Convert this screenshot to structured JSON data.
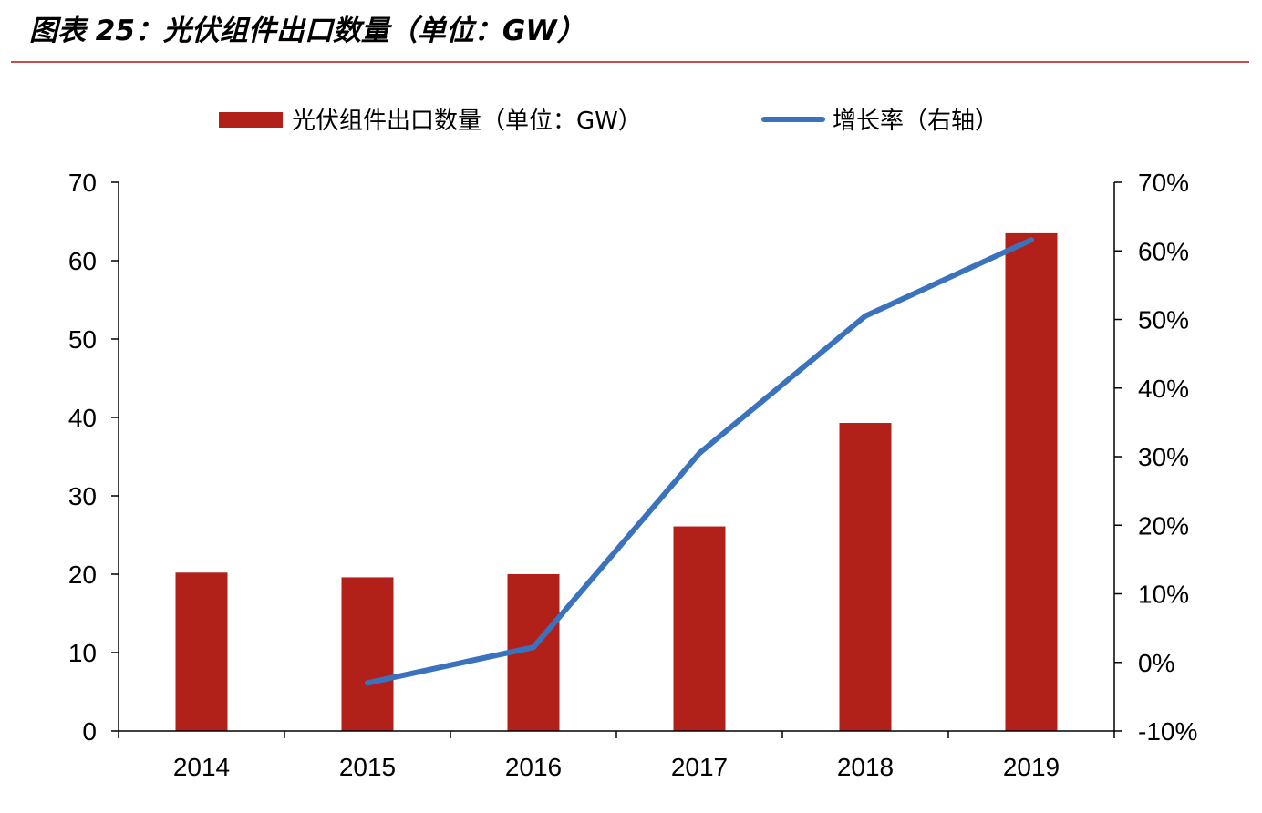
{
  "figure": {
    "title": "图表 25：光伏组件出口数量（单位：GW）",
    "rule_color": "#c0504d"
  },
  "chart_data": {
    "type": "bar",
    "categories": [
      "2014",
      "2015",
      "2016",
      "2017",
      "2018",
      "2019"
    ],
    "series": [
      {
        "name": "光伏组件出口数量（单位：GW）",
        "type": "bar",
        "axis": "left",
        "color": "#b22119",
        "values": [
          20.2,
          19.6,
          20.0,
          26.1,
          39.3,
          63.5
        ]
      },
      {
        "name": "增长率（右轴）",
        "type": "line",
        "axis": "right",
        "color": "#3a72bd",
        "values": [
          null,
          -3.0,
          2.2,
          30.5,
          50.5,
          61.6
        ]
      }
    ],
    "y_left": {
      "ylim": [
        0,
        70
      ],
      "ticks": [
        0,
        10,
        20,
        30,
        40,
        50,
        60,
        70
      ],
      "tick_labels": [
        "0",
        "10",
        "20",
        "30",
        "40",
        "50",
        "60",
        "70"
      ]
    },
    "y_right": {
      "ylim": [
        -10,
        70
      ],
      "ticks": [
        -10,
        0,
        10,
        20,
        30,
        40,
        50,
        60,
        70
      ],
      "tick_labels": [
        "-10%",
        "0%",
        "10%",
        "20%",
        "30%",
        "40%",
        "50%",
        "60%",
        "70%"
      ]
    },
    "grid": false,
    "legend_position": "top-center"
  }
}
